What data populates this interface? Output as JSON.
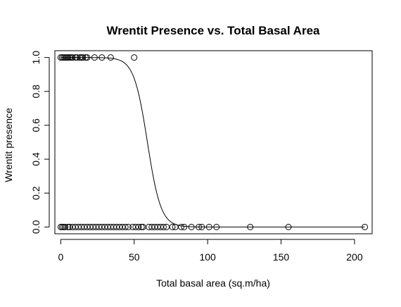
{
  "chart_data": {
    "type": "scatter",
    "title": "Wrentit Presence vs. Total Basal Area",
    "xlabel": "Total basal area (sq.m/ha)",
    "ylabel": "Wrentit presence",
    "xlim": [
      -4,
      212
    ],
    "ylim": [
      -0.04,
      1.04
    ],
    "x_ticks": [
      0,
      50,
      100,
      150,
      200
    ],
    "y_ticks": [
      0.0,
      0.2,
      0.4,
      0.6,
      0.8,
      1.0
    ],
    "x_tick_labels": [
      "0",
      "50",
      "100",
      "150",
      "200"
    ],
    "y_tick_labels": [
      "0.0",
      "0.2",
      "0.4",
      "0.6",
      "0.8",
      "1.0"
    ],
    "grid": false,
    "series": [
      {
        "kind": "points",
        "marker": "open-circle",
        "points": [
          {
            "x": 0,
            "y": 1
          },
          {
            "x": 1,
            "y": 1
          },
          {
            "x": 2,
            "y": 1
          },
          {
            "x": 3,
            "y": 1
          },
          {
            "x": 4,
            "y": 1
          },
          {
            "x": 5,
            "y": 1
          },
          {
            "x": 6,
            "y": 1
          },
          {
            "x": 7,
            "y": 1
          },
          {
            "x": 8,
            "y": 1
          },
          {
            "x": 10,
            "y": 1
          },
          {
            "x": 11,
            "y": 1
          },
          {
            "x": 13,
            "y": 1
          },
          {
            "x": 14,
            "y": 1
          },
          {
            "x": 15,
            "y": 1
          },
          {
            "x": 17,
            "y": 1
          },
          {
            "x": 18,
            "y": 1
          },
          {
            "x": 23,
            "y": 1
          },
          {
            "x": 28,
            "y": 1
          },
          {
            "x": 34,
            "y": 1
          },
          {
            "x": 50,
            "y": 1
          },
          {
            "x": 0,
            "y": 0
          },
          {
            "x": 1,
            "y": 0
          },
          {
            "x": 2,
            "y": 0
          },
          {
            "x": 3,
            "y": 0
          },
          {
            "x": 5,
            "y": 0
          },
          {
            "x": 6,
            "y": 0
          },
          {
            "x": 8,
            "y": 0
          },
          {
            "x": 10,
            "y": 0
          },
          {
            "x": 12,
            "y": 0
          },
          {
            "x": 14,
            "y": 0
          },
          {
            "x": 16,
            "y": 0
          },
          {
            "x": 18,
            "y": 0
          },
          {
            "x": 20,
            "y": 0
          },
          {
            "x": 22,
            "y": 0
          },
          {
            "x": 24,
            "y": 0
          },
          {
            "x": 26,
            "y": 0
          },
          {
            "x": 28,
            "y": 0
          },
          {
            "x": 30,
            "y": 0
          },
          {
            "x": 32,
            "y": 0
          },
          {
            "x": 34,
            "y": 0
          },
          {
            "x": 36,
            "y": 0
          },
          {
            "x": 38,
            "y": 0
          },
          {
            "x": 40,
            "y": 0
          },
          {
            "x": 42,
            "y": 0
          },
          {
            "x": 44,
            "y": 0
          },
          {
            "x": 46,
            "y": 0
          },
          {
            "x": 49,
            "y": 0
          },
          {
            "x": 51,
            "y": 0
          },
          {
            "x": 53,
            "y": 0
          },
          {
            "x": 55,
            "y": 0
          },
          {
            "x": 56,
            "y": 0
          },
          {
            "x": 60,
            "y": 0
          },
          {
            "x": 62,
            "y": 0
          },
          {
            "x": 64,
            "y": 0
          },
          {
            "x": 66,
            "y": 0
          },
          {
            "x": 68,
            "y": 0
          },
          {
            "x": 70,
            "y": 0
          },
          {
            "x": 72,
            "y": 0
          },
          {
            "x": 76,
            "y": 0
          },
          {
            "x": 78,
            "y": 0
          },
          {
            "x": 82,
            "y": 0
          },
          {
            "x": 84,
            "y": 0
          },
          {
            "x": 89,
            "y": 0
          },
          {
            "x": 94,
            "y": 0
          },
          {
            "x": 96,
            "y": 0
          },
          {
            "x": 101,
            "y": 0
          },
          {
            "x": 106,
            "y": 0
          },
          {
            "x": 129,
            "y": 0
          },
          {
            "x": 155,
            "y": 0
          },
          {
            "x": 207,
            "y": 0
          }
        ]
      },
      {
        "kind": "curve",
        "model": "logistic",
        "midpoint_x": 59,
        "scale": 4.6
      }
    ]
  }
}
